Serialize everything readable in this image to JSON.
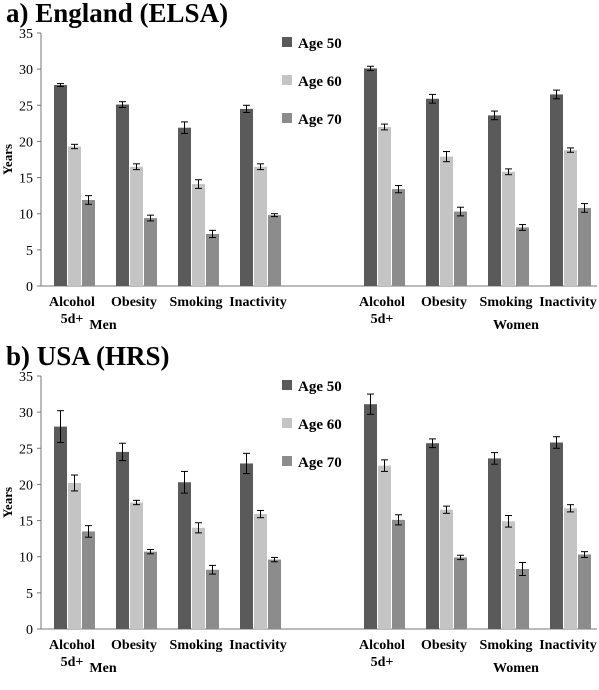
{
  "chart_data": [
    {
      "type": "bar",
      "title": "a) England (ELSA)",
      "ylabel": "Years",
      "xlabel": "",
      "ylim": [
        0,
        35
      ],
      "yticks": [
        0,
        5,
        10,
        15,
        20,
        25,
        30,
        35
      ],
      "grid": false,
      "legend_position": "top-center",
      "groups": [
        {
          "name": "Men",
          "categories": [
            "Alcohol 5d+",
            "Obesity",
            "Smoking",
            "Inactivity"
          ]
        },
        {
          "name": "Women",
          "categories": [
            "Alcohol 5d+",
            "Obesity",
            "Smoking",
            "Inactivity"
          ]
        }
      ],
      "series": [
        {
          "name": "Age 50",
          "color": "#5a5a5a",
          "values": [
            27.8,
            25.1,
            21.9,
            24.5,
            30.1,
            25.9,
            23.6,
            26.5
          ],
          "errors": [
            0.2,
            0.4,
            0.8,
            0.5,
            0.3,
            0.6,
            0.6,
            0.6
          ]
        },
        {
          "name": "Age 60",
          "color": "#c4c4c4",
          "values": [
            19.3,
            16.5,
            14.1,
            16.5,
            22.0,
            17.9,
            15.8,
            18.8
          ],
          "errors": [
            0.3,
            0.4,
            0.6,
            0.4,
            0.4,
            0.7,
            0.4,
            0.3
          ]
        },
        {
          "name": "Age 70",
          "color": "#8c8c8c",
          "values": [
            11.9,
            9.4,
            7.2,
            9.8,
            13.4,
            10.3,
            8.1,
            10.8
          ],
          "errors": [
            0.6,
            0.4,
            0.5,
            0.2,
            0.5,
            0.6,
            0.4,
            0.6
          ]
        }
      ]
    },
    {
      "type": "bar",
      "title": "b) USA (HRS)",
      "ylabel": "Years",
      "xlabel": "",
      "ylim": [
        0,
        35
      ],
      "yticks": [
        0,
        5,
        10,
        15,
        20,
        25,
        30,
        35
      ],
      "grid": false,
      "legend_position": "top-center",
      "groups": [
        {
          "name": "Men",
          "categories": [
            "Alcohol 5d+",
            "Obesity",
            "Smoking",
            "Inactivity"
          ]
        },
        {
          "name": "Women",
          "categories": [
            "Alcohol 5d+",
            "Obesity",
            "Smoking",
            "Inactivity"
          ]
        }
      ],
      "series": [
        {
          "name": "Age 50",
          "color": "#5a5a5a",
          "values": [
            28.0,
            24.5,
            20.3,
            22.9,
            31.1,
            25.7,
            23.6,
            25.8
          ],
          "errors": [
            2.2,
            1.2,
            1.5,
            1.4,
            1.4,
            0.6,
            0.8,
            0.8
          ]
        },
        {
          "name": "Age 60",
          "color": "#c4c4c4",
          "values": [
            20.2,
            17.5,
            14.0,
            15.9,
            22.6,
            16.5,
            14.9,
            16.7
          ],
          "errors": [
            1.1,
            0.3,
            0.7,
            0.5,
            0.8,
            0.5,
            0.8,
            0.5
          ]
        },
        {
          "name": "Age 70",
          "color": "#8c8c8c",
          "values": [
            13.5,
            10.7,
            8.2,
            9.6,
            15.1,
            9.9,
            8.3,
            10.3
          ],
          "errors": [
            0.8,
            0.3,
            0.6,
            0.3,
            0.7,
            0.3,
            0.9,
            0.4
          ]
        }
      ]
    }
  ]
}
